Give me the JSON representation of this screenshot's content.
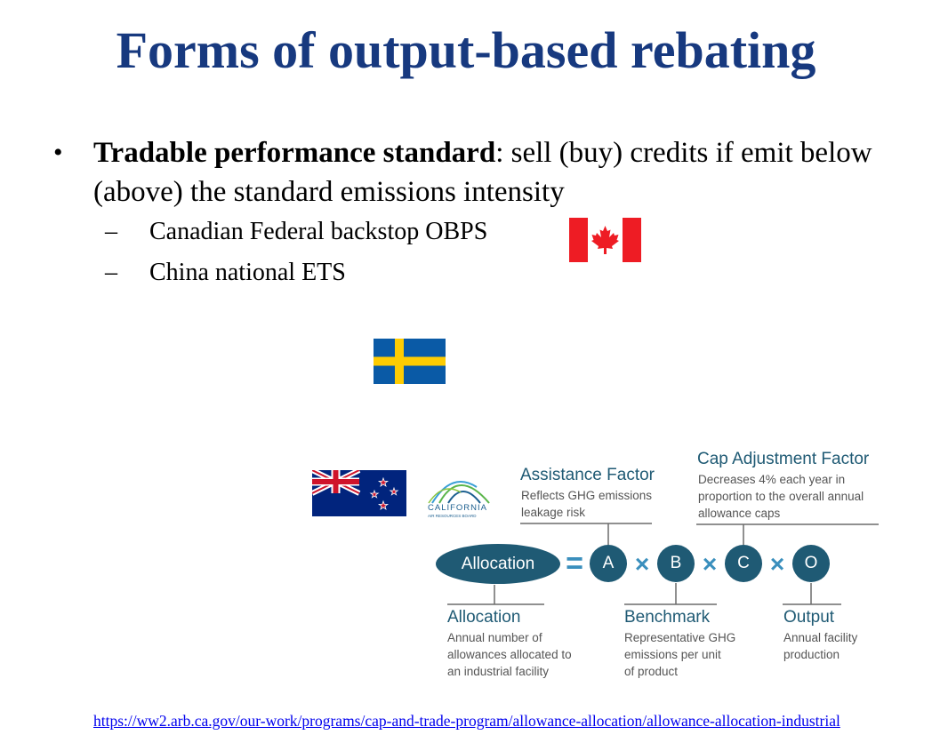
{
  "title": "Forms of output-based rebating",
  "bullet": {
    "bold": "Tradable performance standard",
    "rest": ": sell (buy) credits if emit below (above) the standard emissions intensity"
  },
  "subitems": [
    {
      "dash": "–",
      "text": "Canadian Federal backstop OBPS"
    },
    {
      "dash": "–",
      "text": "China national ETS"
    }
  ],
  "logo": {
    "line1": "CALIFORNIA",
    "line2": "AIR RESOURCES BOARD"
  },
  "formula": {
    "allocation_label": "Allocation",
    "equals": "=",
    "times": "×",
    "factors": [
      "A",
      "B",
      "C",
      "O"
    ],
    "assistance": {
      "title": "Assistance Factor",
      "desc": [
        "Reflects GHG emissions",
        "leakage risk"
      ]
    },
    "cap": {
      "title": "Cap Adjustment Factor",
      "desc": [
        "Decreases 4% each year in",
        "proportion to the overall annual",
        "allowance caps"
      ]
    },
    "allocation": {
      "title": "Allocation",
      "desc": [
        "Annual number of",
        "allowances allocated to",
        "an industrial facility"
      ]
    },
    "benchmark": {
      "title": "Benchmark",
      "desc": [
        "Representative GHG",
        "emissions per unit",
        "of product"
      ]
    },
    "output": {
      "title": "Output",
      "desc": [
        "Annual facility",
        "production"
      ]
    }
  },
  "link": "https://ww2.arb.ca.gov/our-work/programs/cap-and-trade-program/allowance-allocation/allowance-allocation-industrial",
  "colors": {
    "title": "#17397f",
    "diagram_dark": "#1f5a74",
    "canada_red": "#ee1c24",
    "sweden_blue": "#0a5aa6",
    "sweden_yellow": "#fecc02",
    "nz_blue": "#01247d"
  }
}
